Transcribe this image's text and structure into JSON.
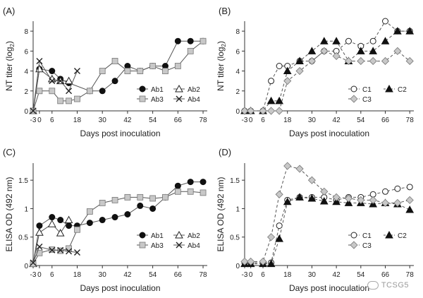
{
  "chart_data": [
    {
      "type": "line",
      "panel_label": "(A)",
      "ylabel": "NT titer (log",
      "ylabel_sub": "2",
      "ylabel_close": ")",
      "xlabel": "Days post inoculation",
      "xlim": [
        -3,
        80
      ],
      "ylim": [
        0,
        9
      ],
      "xticks": [
        -3,
        0,
        6,
        18,
        30,
        42,
        54,
        66,
        78
      ],
      "yticks": [
        0,
        2,
        4,
        6,
        8
      ],
      "legend_location": "bottom-right",
      "series": [
        {
          "name": "Ab1",
          "marker": "circle-filled",
          "x": [
            -3,
            0,
            6,
            10,
            14,
            24,
            30,
            36,
            42,
            48,
            54,
            60,
            66,
            72,
            78
          ],
          "y": [
            0,
            4.2,
            4,
            3.2,
            2.8,
            2,
            2,
            3,
            4.5,
            4,
            4.5,
            4.5,
            7,
            7,
            7
          ]
        },
        {
          "name": "Ab2",
          "marker": "triangle-open",
          "x": [
            -3,
            0,
            6,
            10,
            14
          ],
          "y": [
            0,
            4.2,
            3.2,
            3,
            3
          ]
        },
        {
          "name": "Ab3",
          "marker": "square-gray",
          "x": [
            -3,
            0,
            6,
            10,
            14,
            18,
            24,
            30,
            36,
            42,
            48,
            54,
            60,
            66,
            72,
            78
          ],
          "y": [
            0,
            2,
            2,
            1,
            1,
            1.2,
            2,
            4,
            5,
            4,
            4,
            4.5,
            4,
            4.5,
            6,
            7
          ]
        },
        {
          "name": "Ab4",
          "marker": "x",
          "x": [
            -3,
            0,
            6,
            10,
            14,
            18
          ],
          "y": [
            0,
            5,
            3,
            3,
            2,
            4
          ]
        }
      ]
    },
    {
      "type": "line",
      "panel_label": "(B)",
      "ylabel": "NT titer (log",
      "ylabel_sub": "2",
      "ylabel_close": ")",
      "xlabel": "Days post inoculation",
      "xlim": [
        -3,
        80
      ],
      "ylim": [
        0,
        9
      ],
      "xticks": [
        -3,
        0,
        6,
        18,
        30,
        42,
        54,
        66,
        78
      ],
      "yticks": [
        0,
        2,
        4,
        6,
        8
      ],
      "legend_location": "bottom-right",
      "series": [
        {
          "name": "C1",
          "marker": "circle-open",
          "dashed": true,
          "x": [
            -3,
            0,
            6,
            10,
            14,
            18,
            24,
            30,
            36,
            42,
            48,
            54,
            60,
            66,
            72,
            78
          ],
          "y": [
            0,
            0,
            0,
            3,
            4.5,
            4.5,
            5,
            5,
            6,
            6,
            7,
            6.5,
            7,
            9,
            8,
            8
          ]
        },
        {
          "name": "C2",
          "marker": "triangle-filled",
          "dashed": true,
          "x": [
            -3,
            0,
            6,
            10,
            14,
            18,
            24,
            30,
            36,
            42,
            48,
            54,
            60,
            66,
            72,
            78
          ],
          "y": [
            0,
            0,
            0,
            1,
            1,
            4,
            5,
            6,
            7,
            7,
            5,
            6,
            6,
            7,
            8,
            8
          ]
        },
        {
          "name": "C3",
          "marker": "diamond-gray",
          "dashed": true,
          "x": [
            -3,
            0,
            6,
            10,
            14,
            18,
            24,
            30,
            36,
            42,
            48,
            54,
            60,
            66,
            72,
            78
          ],
          "y": [
            0,
            0,
            0,
            0,
            0,
            3,
            4,
            5,
            6,
            5.5,
            5,
            5,
            5,
            5,
            6,
            5
          ]
        }
      ]
    },
    {
      "type": "line",
      "panel_label": "(C)",
      "ylabel": "ELISA OD (492 nm)",
      "ylabel_sub": "",
      "ylabel_close": "",
      "xlabel": "Days post inoculation",
      "xlim": [
        -3,
        80
      ],
      "ylim": [
        0,
        1.8
      ],
      "xticks": [
        -3,
        0,
        6,
        18,
        30,
        42,
        54,
        66,
        78
      ],
      "yticks": [
        0,
        0.5,
        1,
        1.5
      ],
      "ytick_labels": [
        "0",
        "0.5",
        "1",
        "1.5"
      ],
      "legend_location": "bottom-right",
      "series": [
        {
          "name": "Ab1",
          "marker": "circle-filled",
          "x": [
            -3,
            0,
            6,
            10,
            14,
            18,
            24,
            30,
            36,
            42,
            48,
            54,
            60,
            66,
            72,
            78
          ],
          "y": [
            0.03,
            0.7,
            0.85,
            0.8,
            0.7,
            0.7,
            0.75,
            0.8,
            0.85,
            0.9,
            1.05,
            1.0,
            1.2,
            1.4,
            1.47,
            1.47
          ]
        },
        {
          "name": "Ab2",
          "marker": "triangle-open",
          "x": [
            -3,
            0,
            6,
            10,
            14
          ],
          "y": [
            0.03,
            0.58,
            0.73,
            0.57,
            0.8
          ]
        },
        {
          "name": "Ab3",
          "marker": "square-gray",
          "x": [
            -3,
            0,
            6,
            10,
            14,
            18,
            24,
            30,
            36,
            42,
            48,
            54,
            60,
            66,
            72,
            78
          ],
          "y": [
            0.03,
            0.22,
            0.28,
            0.26,
            0.3,
            0.63,
            0.95,
            1.1,
            1.15,
            1.2,
            1.2,
            1.18,
            1.2,
            1.3,
            1.3,
            1.28
          ]
        },
        {
          "name": "Ab4",
          "marker": "x",
          "x": [
            -3,
            0,
            6,
            10,
            14,
            18
          ],
          "y": [
            0.05,
            0.33,
            0.27,
            0.27,
            0.25,
            0.23
          ]
        }
      ]
    },
    {
      "type": "line",
      "panel_label": "(D)",
      "ylabel": "ELISA OD (492 nm)",
      "ylabel_sub": "",
      "ylabel_close": "",
      "xlabel": "Days post inoculation",
      "xlim": [
        -3,
        80
      ],
      "ylim": [
        0,
        1.8
      ],
      "xticks": [
        -3,
        0,
        6,
        18,
        30,
        42,
        54,
        66,
        78
      ],
      "yticks": [
        0,
        0.5,
        1,
        1.5
      ],
      "ytick_labels": [
        "0",
        "0.5",
        "1",
        "1.5"
      ],
      "legend_location": "bottom-right",
      "series": [
        {
          "name": "C1",
          "marker": "circle-open",
          "dashed": true,
          "x": [
            -3,
            0,
            6,
            10,
            14,
            18,
            24,
            30,
            36,
            42,
            48,
            54,
            60,
            66,
            72,
            78
          ],
          "y": [
            0.05,
            0.05,
            0.05,
            0.05,
            0.7,
            1.15,
            1.2,
            1.2,
            1.2,
            1.15,
            1.2,
            1.2,
            1.25,
            1.3,
            1.35,
            1.38
          ]
        },
        {
          "name": "C2",
          "marker": "triangle-filled",
          "dashed": true,
          "x": [
            -3,
            0,
            6,
            10,
            14,
            18,
            24,
            30,
            36,
            42,
            48,
            54,
            60,
            66,
            72,
            78
          ],
          "y": [
            0.03,
            0.03,
            0.03,
            0.03,
            0.47,
            1.12,
            1.2,
            1.18,
            1.13,
            1.12,
            1.1,
            1.1,
            1.08,
            1.1,
            1.08,
            0.98
          ]
        },
        {
          "name": "C3",
          "marker": "diamond-gray",
          "dashed": true,
          "x": [
            -3,
            0,
            6,
            10,
            14,
            18,
            24,
            30,
            36,
            42,
            48,
            54,
            60,
            66,
            72,
            78
          ],
          "y": [
            0.07,
            0.07,
            0.07,
            0.5,
            1.25,
            1.75,
            1.7,
            1.5,
            1.3,
            1.2,
            1.18,
            1.15,
            1.15,
            1.1,
            1.1,
            1.15
          ]
        }
      ]
    }
  ],
  "watermark": {
    "text": "TCSG5"
  }
}
